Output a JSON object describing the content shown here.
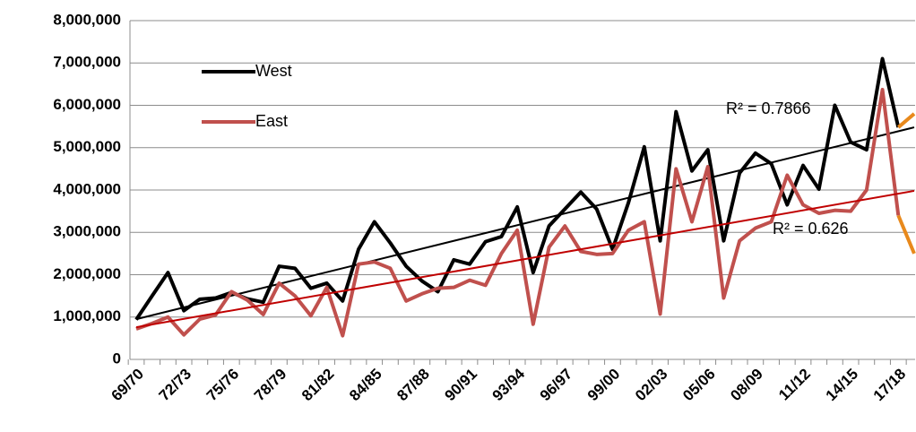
{
  "chart_data": {
    "type": "line",
    "categories": [
      "69/70",
      null,
      null,
      "72/73",
      null,
      null,
      "75/76",
      null,
      null,
      "78/79",
      null,
      null,
      "81/82",
      null,
      null,
      "84/85",
      null,
      null,
      "87/88",
      null,
      null,
      "90/91",
      null,
      null,
      "93/94",
      null,
      null,
      "96/97",
      null,
      null,
      "99/00",
      null,
      null,
      "02/03",
      null,
      null,
      "05/06",
      null,
      null,
      "08/09",
      null,
      null,
      "11/12",
      null,
      null,
      "14/15",
      null,
      null,
      "17/18",
      null
    ],
    "series": [
      {
        "name": "West",
        "color": "#000000",
        "last_segment_color": "#e8891c",
        "values": [
          940000,
          1500000,
          2050000,
          1150000,
          1420000,
          1450000,
          1580000,
          1430000,
          1350000,
          2200000,
          2150000,
          1680000,
          1800000,
          1380000,
          2600000,
          3250000,
          2750000,
          2200000,
          1850000,
          1600000,
          2350000,
          2250000,
          2780000,
          2900000,
          3600000,
          2050000,
          3150000,
          3550000,
          3950000,
          3550000,
          2600000,
          3700000,
          5020000,
          2800000,
          5850000,
          4450000,
          4950000,
          2800000,
          4400000,
          4870000,
          4620000,
          3650000,
          4580000,
          4020000,
          6000000,
          5130000,
          4950000,
          7100000,
          5480000,
          5800000
        ],
        "trendline": {
          "color": "#000000",
          "start": 950000,
          "end": 5480000,
          "label": "R² = 0.7866"
        }
      },
      {
        "name": "East",
        "color": "#c0504d",
        "last_segment_color": "#e8891c",
        "values": [
          720000,
          850000,
          1000000,
          580000,
          950000,
          1050000,
          1600000,
          1400000,
          1060000,
          1800000,
          1500000,
          1030000,
          1700000,
          560000,
          2250000,
          2300000,
          2150000,
          1380000,
          1550000,
          1680000,
          1700000,
          1870000,
          1750000,
          2500000,
          3050000,
          830000,
          2650000,
          3150000,
          2550000,
          2480000,
          2500000,
          3050000,
          3250000,
          1070000,
          4500000,
          3250000,
          4550000,
          1450000,
          2800000,
          3100000,
          3250000,
          4350000,
          3650000,
          3450000,
          3520000,
          3500000,
          4000000,
          6370000,
          3400000,
          2500000
        ],
        "trendline": {
          "color": "#c00000",
          "start": 760000,
          "end": 3980000,
          "label": "R² = 0.626"
        }
      }
    ],
    "ylim": [
      0,
      8000000
    ],
    "yticks": [
      0,
      {
        "value": 1000000,
        "label": "1,000,000"
      },
      {
        "value": 2000000,
        "label": "2,000,000"
      },
      {
        "value": 3000000,
        "label": "3,000,000"
      },
      {
        "value": 4000000,
        "label": "4,000,000"
      },
      {
        "value": 5000000,
        "label": "5,000,000"
      },
      {
        "value": 6000000,
        "label": "6,000,000"
      },
      {
        "value": 7000000,
        "label": "7,000,000"
      },
      {
        "value": 8000000,
        "label": "8,000,000"
      }
    ],
    "grid": true,
    "legend": "top-left"
  }
}
